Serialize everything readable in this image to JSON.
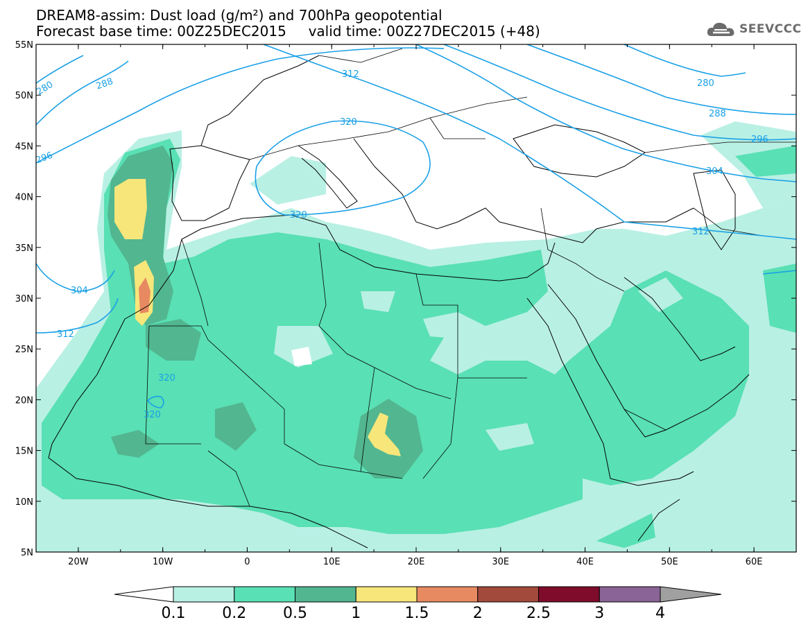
{
  "title": {
    "line1": "DREAM8-assim: Dust load (g/m²) and 700hPa geopotential",
    "line2": "Forecast base time: 00Z25DEC2015     valid time: 00Z27DEC2015 (+48)"
  },
  "logo": {
    "text": "SEEVCCC",
    "icon": "cloud-icon"
  },
  "map": {
    "lon_range": [
      -25,
      65
    ],
    "lat_range": [
      5,
      55
    ],
    "lon_ticks": [
      "20W",
      "10W",
      "0",
      "10E",
      "20E",
      "30E",
      "40E",
      "50E",
      "60E"
    ],
    "lat_ticks": [
      "55N",
      "50N",
      "45N",
      "40N",
      "35N",
      "30N",
      "25N",
      "20N",
      "15N",
      "10N",
      "5N"
    ],
    "contour_labels": [
      "280",
      "288",
      "296",
      "304",
      "312",
      "320",
      "312",
      "280",
      "288",
      "296",
      "304",
      "312",
      "320",
      "320",
      "320"
    ]
  },
  "legend": {
    "labels": [
      "0.1",
      "0.2",
      "0.5",
      "1",
      "1.5",
      "2",
      "2.5",
      "3",
      "4"
    ],
    "colors": [
      "#ffffff",
      "#b9f0e4",
      "#59e0b4",
      "#52b690",
      "#f7e67a",
      "#e78a62",
      "#a24a3c",
      "#7e0c2a",
      "#8a6496",
      "#a0a0a0"
    ],
    "contour_color": "#1aa0e6"
  }
}
